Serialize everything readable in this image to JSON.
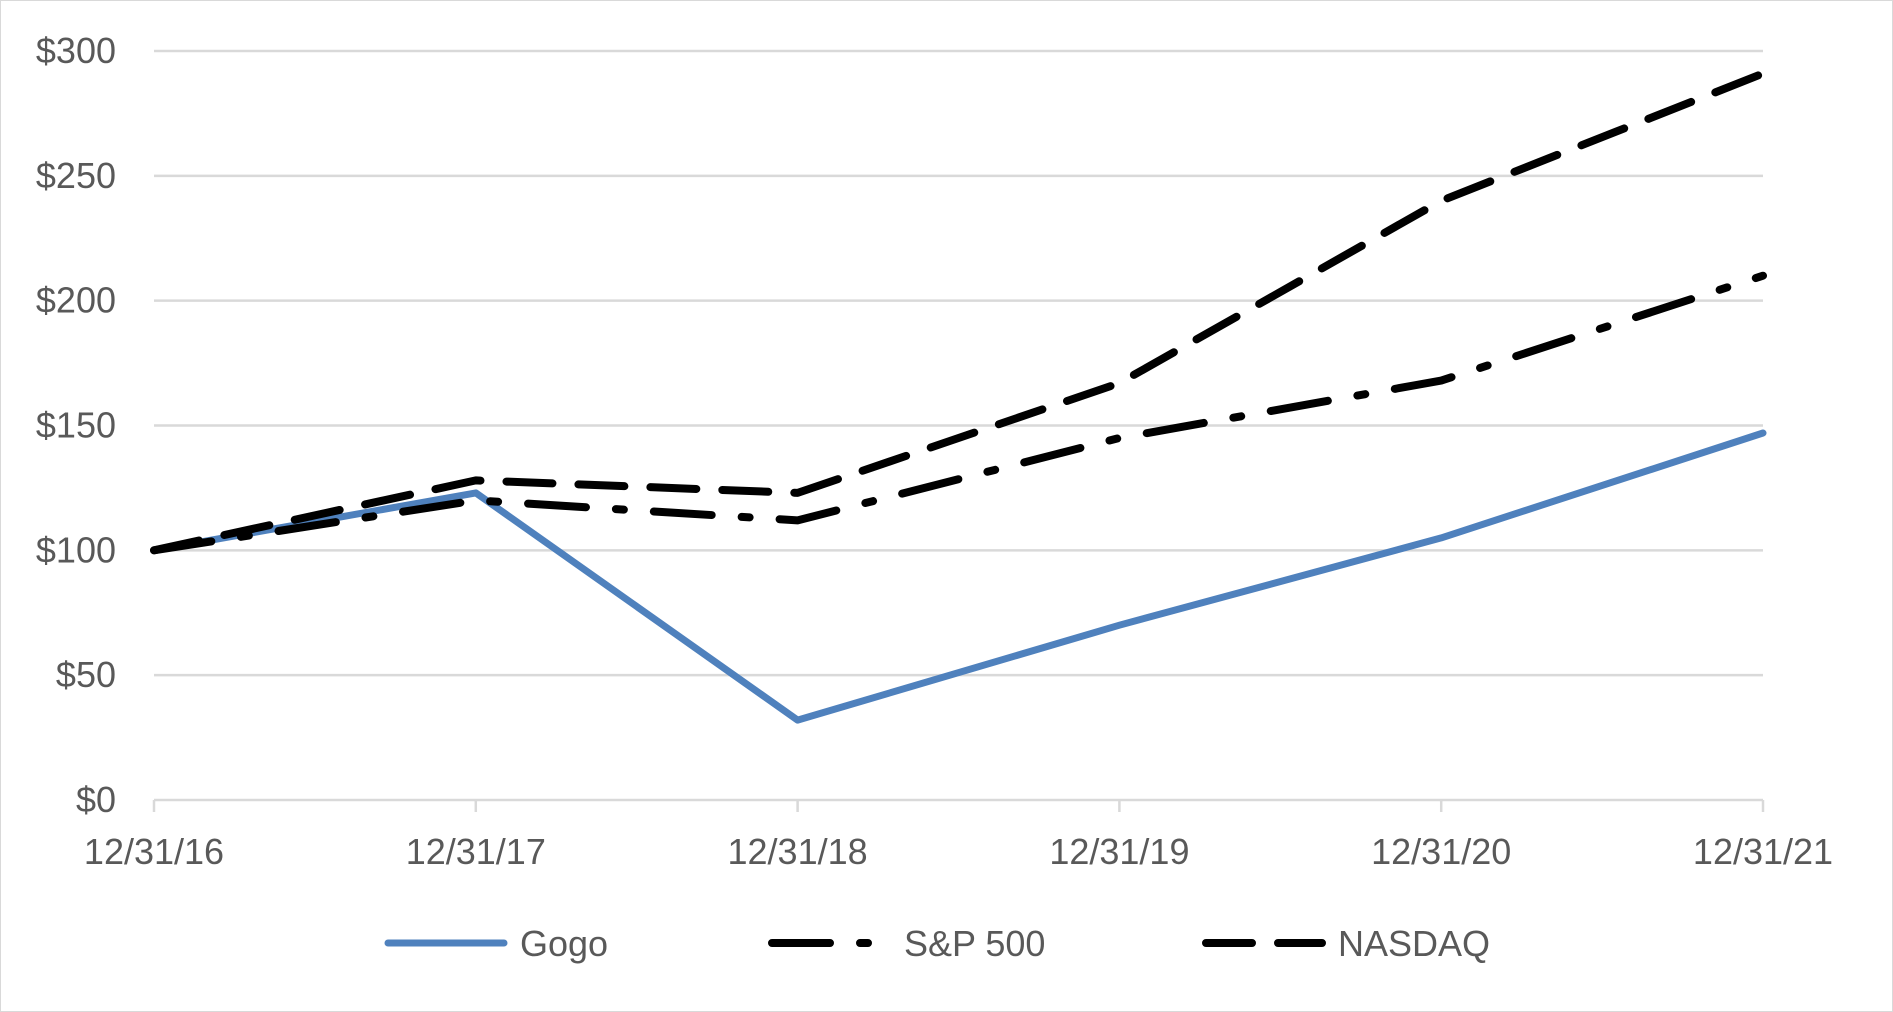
{
  "chart_data": {
    "type": "line",
    "title": "",
    "xlabel": "",
    "ylabel": "",
    "categories": [
      "12/31/16",
      "12/31/17",
      "12/31/18",
      "12/31/19",
      "12/31/20",
      "12/31/21"
    ],
    "y_ticks": [
      "$0",
      "$50",
      "$100",
      "$150",
      "$200",
      "$250",
      "$300"
    ],
    "ylim": [
      0,
      300
    ],
    "grid": true,
    "legend_position": "bottom",
    "series": [
      {
        "name": "Gogo",
        "values": [
          100,
          123,
          32,
          70,
          105,
          147
        ],
        "color": "#4f81bd",
        "line_style": "solid"
      },
      {
        "name": "S&P 500",
        "values": [
          100,
          120,
          112,
          145,
          168,
          210
        ],
        "color": "#000000",
        "line_style": "long-dash-dot"
      },
      {
        "name": "NASDAQ",
        "values": [
          100,
          128,
          123,
          167,
          240,
          291
        ],
        "color": "#000000",
        "line_style": "dash"
      }
    ]
  }
}
